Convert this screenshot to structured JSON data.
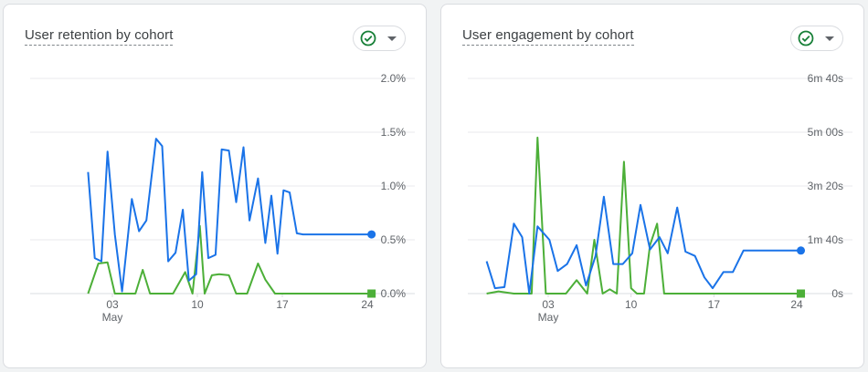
{
  "cards": [
    {
      "title": "User retention by cohort",
      "icons": {
        "check": "check-circle-icon",
        "caret": "dropdown-caret-icon"
      },
      "colors": {
        "check": "#188038",
        "blue": "#1a73e8",
        "green": "#4caf38",
        "grid": "#e8eaed",
        "axis": "#dadce0"
      }
    },
    {
      "title": "User engagement by cohort",
      "icons": {
        "check": "check-circle-icon",
        "caret": "dropdown-caret-icon"
      },
      "colors": {
        "check": "#188038",
        "blue": "#1a73e8",
        "green": "#4caf38",
        "grid": "#e8eaed",
        "axis": "#dadce0"
      }
    }
  ],
  "chart_data": [
    {
      "type": "line",
      "x_days": [
        1,
        2,
        3,
        4,
        5,
        6,
        7,
        8,
        9,
        10,
        11,
        12,
        13,
        14,
        15,
        16,
        17,
        18,
        19,
        20,
        21,
        22,
        23,
        24
      ],
      "x_tick_labels": [
        {
          "day": 3,
          "label": "03",
          "sub": "May"
        },
        {
          "day": 10,
          "label": "10",
          "sub": ""
        },
        {
          "day": 17,
          "label": "17",
          "sub": ""
        },
        {
          "day": 24,
          "label": "24",
          "sub": ""
        }
      ],
      "y_ticks": [
        0,
        0.5,
        1.0,
        1.5,
        2.0
      ],
      "y_tick_labels": [
        "0.0%",
        "0.5%",
        "1.0%",
        "1.5%",
        "2.0%"
      ],
      "ylim": [
        0,
        2.0
      ],
      "series": [
        {
          "color": "#1a73e8",
          "end_marker": "circle",
          "x": [
            1,
            1.55,
            2.1,
            2.6,
            3.2,
            3.8,
            4.6,
            5.2,
            5.8,
            6.6,
            7.1,
            7.6,
            8.2,
            8.8,
            9.3,
            9.9,
            10.4,
            10.9,
            11.5,
            12.0,
            12.6,
            13.2,
            13.8,
            14.3,
            15.0,
            15.6,
            16.1,
            16.6,
            17.1,
            17.6,
            18.2,
            18.7,
            19.3,
            19.8,
            20.4,
            21.0,
            21.6,
            22.2,
            22.8,
            23.4,
            23.9,
            24.35
          ],
          "values": [
            1.13,
            0.33,
            0.3,
            1.32,
            0.55,
            0.02,
            0.88,
            0.58,
            0.68,
            1.44,
            1.37,
            0.3,
            0.38,
            0.78,
            0.12,
            0.18,
            1.13,
            0.33,
            0.36,
            1.34,
            1.33,
            0.85,
            1.36,
            0.68,
            1.07,
            0.47,
            0.91,
            0.37,
            0.96,
            0.94,
            0.56,
            0.55,
            0.55,
            0.55,
            0.55,
            0.55,
            0.55,
            0.55,
            0.55,
            0.55,
            0.55,
            0.55
          ]
        },
        {
          "color": "#4caf38",
          "end_marker": "square",
          "x": [
            1,
            1.85,
            2.6,
            3.2,
            4.0,
            4.9,
            5.5,
            6.1,
            7.0,
            8.0,
            9.0,
            9.6,
            10.2,
            10.6,
            11.2,
            11.8,
            12.6,
            13.2,
            14.1,
            15.0,
            15.6,
            16.4,
            17.0,
            17.4,
            18.2,
            19.0,
            20.0,
            21.0,
            22.0,
            23.0,
            23.7,
            24.35
          ],
          "values": [
            0.0,
            0.28,
            0.29,
            0.0,
            0.0,
            0.0,
            0.22,
            0.0,
            0.0,
            0.0,
            0.2,
            0.0,
            0.63,
            0.0,
            0.17,
            0.18,
            0.17,
            0.0,
            0.0,
            0.28,
            0.13,
            0.0,
            0.0,
            0.0,
            0.0,
            0.0,
            0.0,
            0.0,
            0.0,
            0.0,
            0.0,
            0.0
          ]
        }
      ]
    },
    {
      "type": "line",
      "x_days": [
        1,
        2,
        3,
        4,
        5,
        6,
        7,
        8,
        9,
        10,
        11,
        12,
        13,
        14,
        15,
        16,
        17,
        18,
        19,
        20,
        21,
        22,
        23,
        24
      ],
      "x_tick_labels": [
        {
          "day": 3,
          "label": "03",
          "sub": "May"
        },
        {
          "day": 10,
          "label": "10",
          "sub": ""
        },
        {
          "day": 17,
          "label": "17",
          "sub": ""
        },
        {
          "day": 24,
          "label": "24",
          "sub": ""
        }
      ],
      "y_ticks": [
        0,
        100,
        200,
        300,
        400
      ],
      "y_tick_labels": [
        "0s",
        "1m 40s",
        "3m 20s",
        "5m 00s",
        "6m 40s"
      ],
      "ylim": [
        0,
        400
      ],
      "series": [
        {
          "color": "#1a73e8",
          "end_marker": "circle",
          "x": [
            -2.2,
            -1.5,
            -0.7,
            0.1,
            0.8,
            1.4,
            2.1,
            3.1,
            3.8,
            4.6,
            5.4,
            6.2,
            7.0,
            7.7,
            8.5,
            9.3,
            10.1,
            10.8,
            11.6,
            12.4,
            13.1,
            13.9,
            14.6,
            15.4,
            16.2,
            16.9,
            17.8,
            18.6,
            19.5,
            20.4,
            21.2,
            22.1,
            22.9,
            23.7,
            24.35
          ],
          "values": [
            60,
            10,
            12,
            130,
            105,
            0,
            125,
            100,
            42,
            55,
            90,
            15,
            70,
            180,
            55,
            55,
            75,
            165,
            82,
            105,
            75,
            160,
            78,
            70,
            30,
            10,
            40,
            40,
            80,
            80,
            80,
            80,
            80,
            80,
            80
          ]
        },
        {
          "color": "#4caf38",
          "end_marker": "square",
          "x": [
            -2.2,
            -1.2,
            0.1,
            1.0,
            1.6,
            2.1,
            2.8,
            3.6,
            4.5,
            5.4,
            6.3,
            6.9,
            7.6,
            8.2,
            8.8,
            9.4,
            10.0,
            10.5,
            11.1,
            11.6,
            12.2,
            12.8,
            13.4,
            14.1,
            15.0,
            16.0,
            17.0,
            18.0,
            19.0,
            20.0,
            21.0,
            22.0,
            23.0,
            23.7,
            24.35
          ],
          "values": [
            0,
            4,
            0,
            0,
            0,
            290,
            0,
            0,
            0,
            25,
            0,
            100,
            0,
            8,
            0,
            245,
            10,
            0,
            0,
            90,
            130,
            0,
            0,
            0,
            0,
            0,
            0,
            0,
            0,
            0,
            0,
            0,
            0,
            0,
            0
          ]
        }
      ]
    }
  ]
}
